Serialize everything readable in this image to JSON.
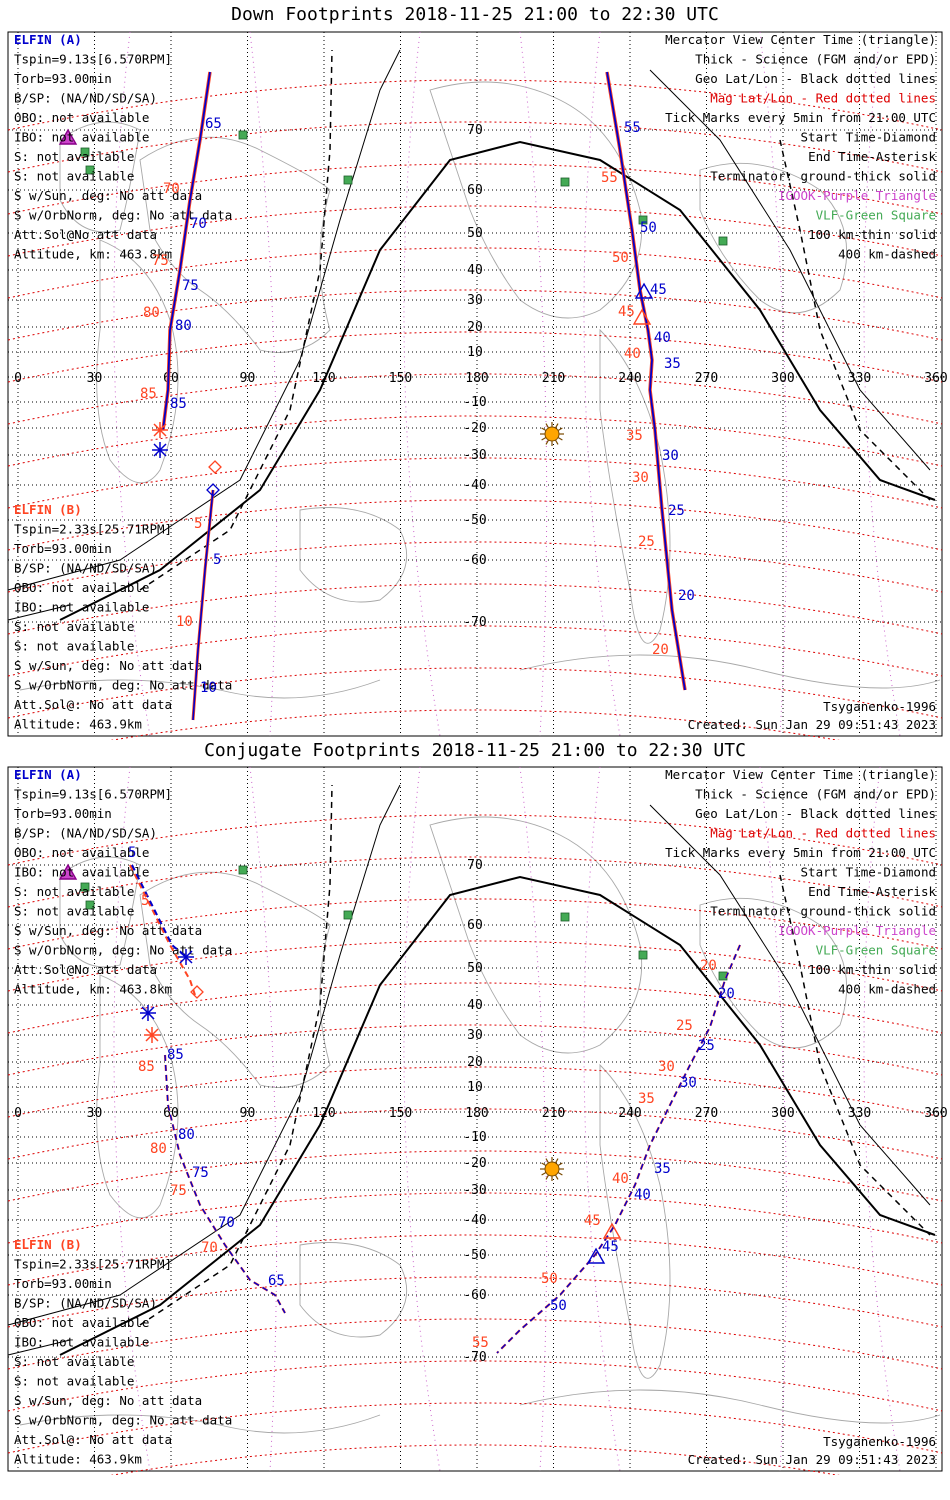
{
  "panels": [
    {
      "id": "down",
      "title": "Down Footprints 2018-11-25 21:00 to 22:30 UTC",
      "info_a": [
        "ELFIN (A)",
        "Tspin=9.13s[6.570RPM]",
        "Torb=93.00min",
        "B/SP: (NA/ND/SD/SA)",
        "OBO: not available",
        "IBO: not available",
        "S: not available",
        "S: not available",
        "S w/Sun, deg: No att data",
        "S w/OrbNorm, deg: No att data",
        "Att.Sol@No att data",
        "Altitude, km: 463.8km"
      ],
      "info_b": [
        "ELFIN (B)",
        "Tspin=2.33s[25.71RPM]",
        "Torb=93.00min",
        "B/SP: (NA/ND/SD/SA)",
        "OBO: not available",
        "IBO: not available",
        "S: not available",
        "S: not available",
        "S w/Sun, deg: No att data",
        "S w/OrbNorm, deg: No att data",
        "Att.Sol@: No att data",
        "Altitude: 463.9km"
      ],
      "legend": [
        "Mercator View Center Time (triangle)",
        "Thick - Science (FGM and/or EPD)",
        "Geo Lat/Lon - Black dotted lines",
        "Mag Lat/Lon - Red dotted lines",
        "Tick Marks every 5min from 21:00 UTC",
        "Start Time-Diamond",
        "End Time-Asterisk",
        "Terminator: ground-thick solid",
        "IGOOK-Purple Triangle",
        "VLF-Green Square",
        "100 km-thin solid",
        "400 km-dashed"
      ],
      "model": "Tsyganenko-1996",
      "created": "Created: Sun Jan 29 09:51:43 2023"
    },
    {
      "id": "conj",
      "title": "Conjugate Footprints 2018-11-25 21:00 to 22:30 UTC",
      "info_a": [
        "ELFIN (A)",
        "Tspin=9.13s[6.570RPM]",
        "Torb=93.00min",
        "B/SP: (NA/ND/SD/SA)",
        "OBO: not available",
        "IBO: not available",
        "S: not available",
        "S: not available",
        "S w/Sun, deg: No att data",
        "S w/OrbNorm, deg: No att data",
        "Att.Sol@No att data",
        "Altitude, km: 463.8km"
      ],
      "info_b": [
        "ELFIN (B)",
        "Tspin=2.33s[25.71RPM]",
        "Torb=93.00min",
        "B/SP: (NA/ND/SD/SA)",
        "OBO: not available",
        "IBO: not available",
        "S: not available",
        "S: not available",
        "S w/Sun, deg: No att data",
        "S w/OrbNorm, deg: No att data",
        "Att.Sol@: No att data",
        "Altitude: 463.9km"
      ],
      "legend": [
        "Mercator View Center Time (triangle)",
        "Thick - Science (FGM and/or EPD)",
        "Geo Lat/Lon - Black dotted lines",
        "Mag Lat/Lon - Red dotted lines",
        "Tick Marks every 5min from 21:00 UTC",
        "Start Time-Diamond",
        "End Time-Asterisk",
        "Terminator: ground-thick solid",
        "IGOOK-Purple Triangle",
        "VLF-Green Square",
        "100 km-thin solid",
        "400 km-dashed"
      ],
      "model": "Tsyganenko-1996",
      "created": "Created: Sun Jan 29 09:51:43 2023"
    }
  ],
  "map": {
    "lon_ticks": [
      "0",
      "30",
      "60",
      "90",
      "120",
      "150",
      "180",
      "210",
      "240",
      "270",
      "300",
      "330",
      "360"
    ],
    "lat_ticks": [
      "70",
      "60",
      "50",
      "40",
      "30",
      "20",
      "10",
      "-10",
      "-20",
      "-30",
      "-40",
      "-50",
      "-60",
      "-70"
    ]
  },
  "down_tracks": {
    "a_labels_blue": [
      "65",
      "70",
      "75",
      "80",
      "85"
    ],
    "a_labels_red": [
      "70",
      "75",
      "80",
      "85"
    ],
    "b_labels_blue": [
      "5",
      "10"
    ],
    "b_labels_red": [
      "5",
      "10"
    ],
    "c_labels_blue": [
      "55",
      "50",
      "45",
      "40",
      "35",
      "30",
      "25",
      "20"
    ],
    "c_labels_red": [
      "55",
      "50",
      "45",
      "40",
      "35",
      "30",
      "25",
      "20"
    ]
  },
  "conj_tracks": {
    "a_labels_blue": [
      "5",
      "85",
      "80",
      "75",
      "70",
      "65"
    ],
    "a_labels_red": [
      "5",
      "85",
      "80",
      "75",
      "70"
    ],
    "c_labels_blue": [
      "20",
      "25",
      "30",
      "35",
      "40",
      "45",
      "50"
    ],
    "c_labels_red": [
      "20",
      "25",
      "30",
      "35",
      "40",
      "45",
      "50",
      "55"
    ]
  },
  "colors": {
    "elfin_a": "#0000cc",
    "elfin_b": "#ff4422",
    "mag_grid": "#dd0000",
    "igook": "#cc44cc",
    "vlf": "#44aa55",
    "sun": "#ffa500",
    "coast": "#a8a8a8"
  }
}
